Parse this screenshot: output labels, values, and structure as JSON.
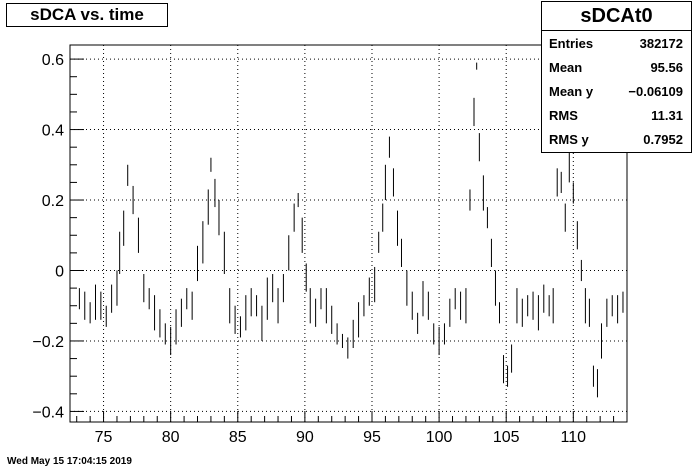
{
  "title": "sDCA vs. time",
  "stats": {
    "name": "sDCAt0",
    "rows": [
      {
        "label": "Entries",
        "value": "382172"
      },
      {
        "label": "Mean",
        "value": "95.56"
      },
      {
        "label": "Mean y",
        "value": "−0.06109"
      },
      {
        "label": "RMS",
        "value": "11.31"
      },
      {
        "label": "RMS y",
        "value": "0.7952"
      }
    ]
  },
  "footer": "Wed May 15 17:04:15 2019",
  "chart_data": {
    "type": "scatter",
    "title": "sDCA vs. time",
    "xlim": [
      72.5,
      114
    ],
    "ylim": [
      -0.43,
      0.64
    ],
    "x_ticks": [
      75,
      80,
      85,
      90,
      95,
      100,
      105,
      110
    ],
    "x_tick_labels": [
      "75",
      "80",
      "85",
      "90",
      "95",
      "100",
      "105",
      "110"
    ],
    "y_ticks": [
      -0.4,
      -0.2,
      0,
      0.2,
      0.4,
      0.6
    ],
    "y_tick_labels": [
      "−0.4",
      "−0.2",
      "0",
      "0.2",
      "0.4",
      "0.6"
    ],
    "grid": true,
    "legend": "top-right stats box",
    "point_color": "#000000",
    "x": [
      73.2,
      73.6,
      74.0,
      74.4,
      74.8,
      75.2,
      75.6,
      76.0,
      76.2,
      76.5,
      76.8,
      77.2,
      77.6,
      78.0,
      78.4,
      78.8,
      79.2,
      79.6,
      80.0,
      80.4,
      80.8,
      81.2,
      81.6,
      82.0,
      82.4,
      82.8,
      83.0,
      83.3,
      83.6,
      84.0,
      84.4,
      84.8,
      85.2,
      85.6,
      86.0,
      86.4,
      86.8,
      87.2,
      87.6,
      88.0,
      88.4,
      88.8,
      89.2,
      89.5,
      89.8,
      90.1,
      90.4,
      90.8,
      91.2,
      91.6,
      92.0,
      92.4,
      92.8,
      93.2,
      93.6,
      94.0,
      94.4,
      94.8,
      95.2,
      95.5,
      95.8,
      96.0,
      96.3,
      96.6,
      96.9,
      97.2,
      97.6,
      98.0,
      98.4,
      98.8,
      99.2,
      99.6,
      100.0,
      100.4,
      100.8,
      101.2,
      101.6,
      102.0,
      102.3,
      102.6,
      102.8,
      103.0,
      103.3,
      103.6,
      103.9,
      104.2,
      104.5,
      104.8,
      105.1,
      105.4,
      105.8,
      106.2,
      106.6,
      107.0,
      107.4,
      107.8,
      108.2,
      108.5,
      108.8,
      109.1,
      109.4,
      109.7,
      110.0,
      110.3,
      110.6,
      110.9,
      111.2,
      111.5,
      111.8,
      112.1,
      112.5,
      112.9,
      113.3,
      113.7
    ],
    "y": [
      -0.08,
      -0.1,
      -0.12,
      -0.09,
      -0.1,
      -0.13,
      -0.08,
      -0.05,
      0.05,
      0.12,
      0.27,
      0.2,
      0.1,
      -0.05,
      -0.08,
      -0.12,
      -0.15,
      -0.18,
      -0.2,
      -0.16,
      -0.12,
      -0.08,
      -0.1,
      0.02,
      0.08,
      0.18,
      0.3,
      0.22,
      0.15,
      0.05,
      -0.1,
      -0.14,
      -0.16,
      -0.12,
      -0.09,
      -0.1,
      -0.15,
      -0.08,
      -0.05,
      -0.1,
      -0.05,
      0.05,
      0.15,
      0.2,
      0.1,
      -0.02,
      -0.1,
      -0.12,
      -0.08,
      -0.1,
      -0.14,
      -0.18,
      -0.2,
      -0.22,
      -0.18,
      -0.14,
      -0.1,
      -0.06,
      -0.04,
      0.08,
      0.15,
      0.25,
      0.35,
      0.25,
      0.12,
      0.05,
      -0.05,
      -0.1,
      -0.15,
      -0.08,
      -0.1,
      -0.18,
      -0.2,
      -0.18,
      -0.12,
      -0.08,
      -0.1,
      -0.1,
      0.2,
      0.45,
      0.58,
      0.35,
      0.22,
      0.15,
      0.05,
      -0.05,
      -0.12,
      -0.28,
      -0.3,
      -0.25,
      -0.1,
      -0.12,
      -0.1,
      -0.1,
      -0.12,
      -0.08,
      -0.1,
      -0.1,
      0.25,
      0.25,
      0.15,
      0.3,
      0.22,
      0.1,
      0.0,
      -0.1,
      -0.12,
      -0.3,
      -0.32,
      -0.2,
      -0.12,
      -0.1,
      -0.11,
      -0.09
    ],
    "ey": [
      0.03,
      0.04,
      0.03,
      0.05,
      0.04,
      0.03,
      0.04,
      0.05,
      0.06,
      0.05,
      0.03,
      0.04,
      0.05,
      0.04,
      0.03,
      0.05,
      0.04,
      0.03,
      0.04,
      0.05,
      0.04,
      0.03,
      0.04,
      0.05,
      0.06,
      0.05,
      0.02,
      0.04,
      0.05,
      0.06,
      0.05,
      0.04,
      0.03,
      0.05,
      0.04,
      0.03,
      0.05,
      0.06,
      0.04,
      0.05,
      0.04,
      0.05,
      0.04,
      0.02,
      0.05,
      0.04,
      0.05,
      0.04,
      0.03,
      0.05,
      0.04,
      0.03,
      0.02,
      0.03,
      0.04,
      0.05,
      0.03,
      0.04,
      0.05,
      0.03,
      0.04,
      0.05,
      0.03,
      0.04,
      0.05,
      0.04,
      0.05,
      0.04,
      0.03,
      0.05,
      0.04,
      0.03,
      0.04,
      0.03,
      0.04,
      0.03,
      0.04,
      0.05,
      0.03,
      0.04,
      0.01,
      0.04,
      0.05,
      0.03,
      0.04,
      0.05,
      0.03,
      0.04,
      0.03,
      0.04,
      0.05,
      0.04,
      0.03,
      0.04,
      0.05,
      0.04,
      0.03,
      0.05,
      0.04,
      0.03,
      0.04,
      0.05,
      0.03,
      0.04,
      0.03,
      0.05,
      0.04,
      0.03,
      0.04,
      0.05,
      0.04,
      0.03,
      0.04,
      0.03
    ]
  }
}
